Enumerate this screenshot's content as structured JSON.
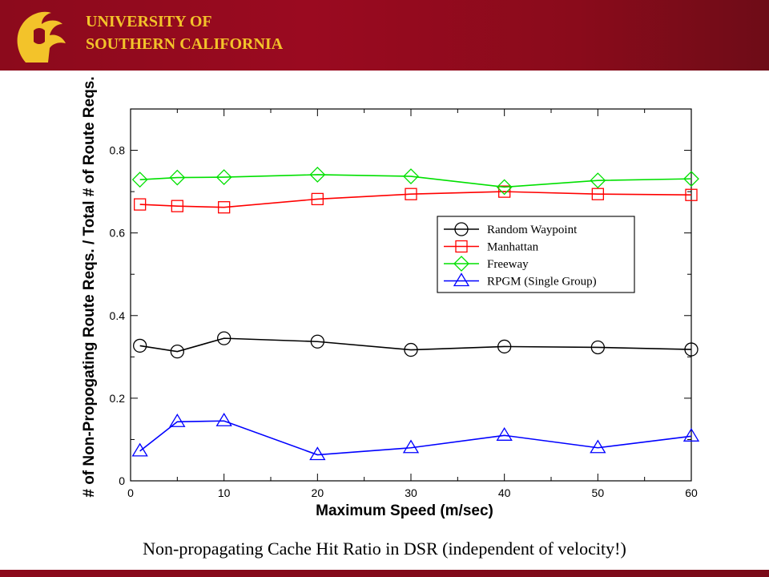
{
  "header": {
    "line1": "UNIVERSITY OF",
    "line2": "SOUTHERN CALIFORNIA",
    "logo_icon": "trojan-helmet-icon",
    "banner_color": "#8c0a1c",
    "text_color": "#f3c32a"
  },
  "caption": "Non-propagating Cache Hit Ratio in DSR (independent of velocity!)",
  "chart_data": {
    "type": "line",
    "title": "",
    "xlabel": "Maximum Speed (m/sec)",
    "ylabel": "# of Non-Propogating Route Reqs. / Total # of Route Reqs.",
    "xlim": [
      0,
      60
    ],
    "ylim": [
      0,
      0.9
    ],
    "xticks": [
      0,
      10,
      20,
      30,
      40,
      50,
      60
    ],
    "yticks": [
      0,
      0.2,
      0.4,
      0.6,
      0.8
    ],
    "grid": false,
    "legend_position": "right",
    "x": [
      1,
      5,
      10,
      20,
      30,
      40,
      50,
      60
    ],
    "series": [
      {
        "name": "Random Waypoint",
        "color": "#000000",
        "marker": "circle",
        "values": [
          0.327,
          0.313,
          0.345,
          0.337,
          0.317,
          0.325,
          0.323,
          0.318
        ]
      },
      {
        "name": "Manhattan",
        "color": "#ff0000",
        "marker": "square",
        "values": [
          0.669,
          0.665,
          0.662,
          0.682,
          0.694,
          0.7,
          0.694,
          0.692
        ]
      },
      {
        "name": "Freeway",
        "color": "#00e000",
        "marker": "diamond",
        "values": [
          0.729,
          0.734,
          0.735,
          0.741,
          0.737,
          0.711,
          0.727,
          0.731
        ]
      },
      {
        "name": "RPGM (Single Group)",
        "color": "#0000ff",
        "marker": "triangle",
        "values": [
          0.072,
          0.143,
          0.145,
          0.063,
          0.08,
          0.11,
          0.08,
          0.108
        ]
      }
    ]
  }
}
